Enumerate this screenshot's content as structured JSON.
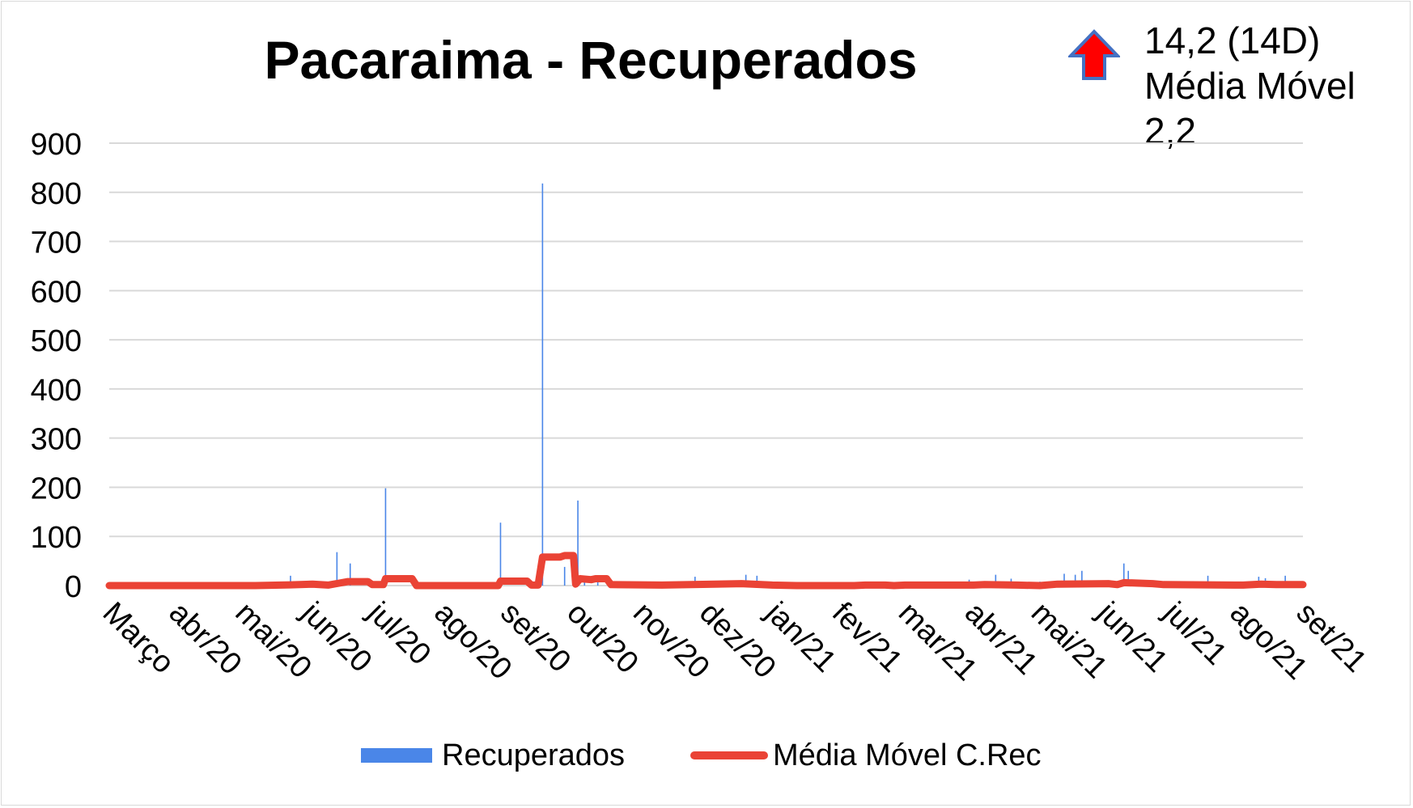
{
  "chart_data": {
    "type": "bar",
    "title": "Pacaraima - Recuperados",
    "xlabel": "",
    "ylabel": "",
    "ylim": [
      0,
      900
    ],
    "yticks": [
      0,
      100,
      200,
      300,
      400,
      500,
      600,
      700,
      800,
      900
    ],
    "grid": true,
    "legend_position": "bottom",
    "x_tick_labels": [
      "Março",
      "abr/20",
      "mai/20",
      "jun/20",
      "jul/20",
      "ago/20",
      "set/20",
      "out/20",
      "nov/20",
      "dez/20",
      "jan/21",
      "fev/21",
      "mar/21",
      "abr/21",
      "mai/21",
      "jun/21",
      "jul/21",
      "ago/21",
      "set/21"
    ],
    "x_range": [
      "2020-03-15",
      "2021-09-06"
    ],
    "series": [
      {
        "name": "Recuperados",
        "type": "bar",
        "color": "#4a86e8",
        "points": [
          [
            "2020-06-05",
            20
          ],
          [
            "2020-06-15",
            5
          ],
          [
            "2020-06-26",
            68
          ],
          [
            "2020-07-02",
            45
          ],
          [
            "2020-07-18",
            198
          ],
          [
            "2020-09-08",
            128
          ],
          [
            "2020-09-27",
            818
          ],
          [
            "2020-10-07",
            38
          ],
          [
            "2020-10-13",
            173
          ],
          [
            "2020-10-16",
            12
          ],
          [
            "2020-10-22",
            10
          ],
          [
            "2020-11-15",
            5
          ],
          [
            "2020-12-05",
            18
          ],
          [
            "2020-12-12",
            8
          ],
          [
            "2020-12-22",
            10
          ],
          [
            "2020-12-28",
            22
          ],
          [
            "2021-01-02",
            20
          ],
          [
            "2021-01-08",
            8
          ],
          [
            "2021-03-16",
            8
          ],
          [
            "2021-04-08",
            12
          ],
          [
            "2021-04-20",
            22
          ],
          [
            "2021-04-27",
            14
          ],
          [
            "2021-05-10",
            8
          ],
          [
            "2021-05-21",
            24
          ],
          [
            "2021-05-26",
            22
          ],
          [
            "2021-05-29",
            30
          ],
          [
            "2021-06-17",
            45
          ],
          [
            "2021-06-19",
            30
          ],
          [
            "2021-06-22",
            10
          ],
          [
            "2021-07-25",
            20
          ],
          [
            "2021-08-17",
            18
          ],
          [
            "2021-08-20",
            15
          ],
          [
            "2021-08-29",
            20
          ]
        ]
      },
      {
        "name": "Média Móvel C.Rec",
        "type": "line",
        "color": "#ea4335",
        "points": [
          [
            "2020-03-15",
            0
          ],
          [
            "2020-05-20",
            0
          ],
          [
            "2020-06-05",
            1.5
          ],
          [
            "2020-06-15",
            3
          ],
          [
            "2020-06-22",
            1
          ],
          [
            "2020-06-27",
            5
          ],
          [
            "2020-07-01",
            8
          ],
          [
            "2020-07-10",
            8
          ],
          [
            "2020-07-12",
            2
          ],
          [
            "2020-07-17",
            2
          ],
          [
            "2020-07-18",
            14
          ],
          [
            "2020-07-30",
            14
          ],
          [
            "2020-08-01",
            0
          ],
          [
            "2020-09-07",
            0
          ],
          [
            "2020-09-08",
            9
          ],
          [
            "2020-09-20",
            9
          ],
          [
            "2020-09-22",
            1
          ],
          [
            "2020-09-25",
            1
          ],
          [
            "2020-09-27",
            58
          ],
          [
            "2020-10-05",
            58
          ],
          [
            "2020-10-07",
            61
          ],
          [
            "2020-10-11",
            61
          ],
          [
            "2020-10-12",
            3
          ],
          [
            "2020-10-14",
            14
          ],
          [
            "2020-10-19",
            12
          ],
          [
            "2020-10-21",
            14
          ],
          [
            "2020-10-26",
            14
          ],
          [
            "2020-10-28",
            2
          ],
          [
            "2020-11-20",
            1
          ],
          [
            "2020-12-26",
            4
          ],
          [
            "2021-01-09",
            1
          ],
          [
            "2021-01-20",
            0
          ],
          [
            "2021-02-15",
            0
          ],
          [
            "2021-02-20",
            1
          ],
          [
            "2021-03-01",
            1
          ],
          [
            "2021-03-05",
            0
          ],
          [
            "2021-03-10",
            1
          ],
          [
            "2021-04-10",
            1
          ],
          [
            "2021-04-15",
            2
          ],
          [
            "2021-04-30",
            1
          ],
          [
            "2021-05-10",
            0
          ],
          [
            "2021-05-18",
            3
          ],
          [
            "2021-06-10",
            4
          ],
          [
            "2021-06-14",
            2
          ],
          [
            "2021-06-17",
            6
          ],
          [
            "2021-06-30",
            4
          ],
          [
            "2021-07-05",
            2
          ],
          [
            "2021-08-10",
            1
          ],
          [
            "2021-08-18",
            3
          ],
          [
            "2021-08-25",
            2
          ],
          [
            "2021-09-06",
            2
          ]
        ]
      }
    ]
  },
  "annotation": {
    "indicator_icon": "up-arrow-icon",
    "indicator_color": "#ff0000",
    "indicator_outline": "#4472c4",
    "line1": "14,2 (14D)",
    "line2": "Média Móvel",
    "line3": "2,2"
  }
}
